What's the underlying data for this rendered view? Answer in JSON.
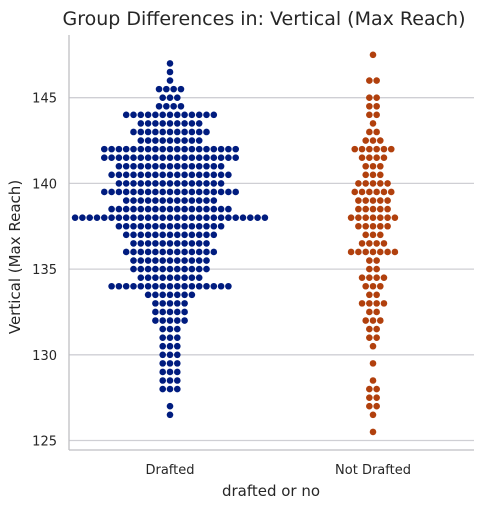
{
  "chart_data": {
    "type": "swarm",
    "title": "Group Differences in: Vertical (Max Reach)",
    "xlabel": "drafted or no",
    "ylabel": "Vertical (Max Reach)",
    "ylim": [
      124.5,
      148.5
    ],
    "yticks": [
      125,
      130,
      135,
      140,
      145
    ],
    "grid": "horizontal",
    "categories": [
      "Drafted",
      "Not Drafted"
    ],
    "colors": {
      "Drafted": "#001c7f",
      "Not Drafted": "#b1400d"
    },
    "series": [
      {
        "values": [
          [
            147,
            1
          ],
          [
            146.5,
            1
          ],
          [
            146,
            1
          ],
          [
            145.5,
            4
          ],
          [
            145,
            3
          ],
          [
            144.5,
            4
          ],
          [
            144,
            13
          ],
          [
            143.5,
            9
          ],
          [
            143,
            11
          ],
          [
            142.5,
            9
          ],
          [
            142,
            19
          ],
          [
            141.5,
            19
          ],
          [
            141,
            15
          ],
          [
            140.5,
            17
          ],
          [
            140,
            15
          ],
          [
            139.5,
            19
          ],
          [
            139,
            13
          ],
          [
            138.5,
            17
          ],
          [
            138,
            27
          ],
          [
            137.5,
            15
          ],
          [
            137,
            13
          ],
          [
            136.5,
            11
          ],
          [
            136,
            13
          ],
          [
            135.5,
            11
          ],
          [
            135,
            11
          ],
          [
            134.5,
            9
          ],
          [
            134,
            17
          ],
          [
            133.5,
            7
          ],
          [
            133,
            5
          ],
          [
            132.5,
            5
          ],
          [
            132,
            5
          ],
          [
            131.5,
            3
          ],
          [
            131,
            3
          ],
          [
            130.5,
            3
          ],
          [
            130,
            3
          ],
          [
            129.5,
            3
          ],
          [
            129,
            3
          ],
          [
            128.5,
            3
          ],
          [
            128,
            3
          ],
          [
            127,
            1
          ],
          [
            126.5,
            1
          ]
        ]
      },
      {
        "values": [
          [
            147.5,
            1
          ],
          [
            146,
            2
          ],
          [
            145,
            2
          ],
          [
            144.5,
            2
          ],
          [
            144,
            2
          ],
          [
            143.5,
            1
          ],
          [
            143,
            2
          ],
          [
            142.5,
            3
          ],
          [
            142,
            6
          ],
          [
            141.5,
            4
          ],
          [
            141,
            3
          ],
          [
            140.5,
            3
          ],
          [
            140,
            5
          ],
          [
            139.5,
            6
          ],
          [
            139,
            5
          ],
          [
            138.5,
            5
          ],
          [
            138,
            7
          ],
          [
            137.5,
            5
          ],
          [
            137,
            3
          ],
          [
            136.5,
            4
          ],
          [
            136,
            7
          ],
          [
            135.5,
            2
          ],
          [
            135,
            2
          ],
          [
            134.5,
            4
          ],
          [
            134,
            3
          ],
          [
            133.5,
            2
          ],
          [
            133,
            4
          ],
          [
            132.5,
            2
          ],
          [
            132,
            3
          ],
          [
            131.5,
            2
          ],
          [
            131,
            2
          ],
          [
            130.5,
            1
          ],
          [
            129.5,
            1
          ],
          [
            128.5,
            1
          ],
          [
            128,
            2
          ],
          [
            127.5,
            2
          ],
          [
            127,
            2
          ],
          [
            126.5,
            1
          ],
          [
            125.5,
            1
          ]
        ]
      }
    ]
  }
}
